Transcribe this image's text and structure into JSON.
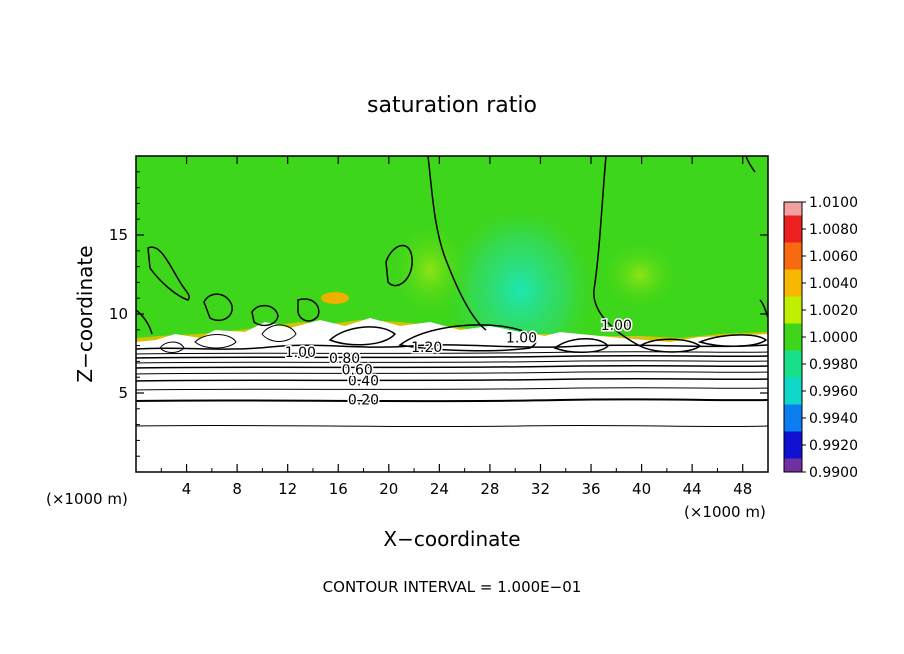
{
  "chart_data": {
    "type": "heatmap",
    "title": "saturation ratio",
    "xlabel": "X−coordinate",
    "ylabel": "Z−coordinate",
    "x_unit_left": "(×1000 m)",
    "x_unit_right": "(×1000 m)",
    "footer": "CONTOUR INTERVAL = 1.000E−01",
    "xlim": [
      0,
      50
    ],
    "ylim": [
      0,
      20
    ],
    "x_ticks": [
      4,
      8,
      12,
      16,
      20,
      24,
      28,
      32,
      36,
      40,
      44,
      48
    ],
    "y_ticks": [
      5,
      10,
      15
    ],
    "colorbar": {
      "levels": [
        "1.0100",
        "1.0080",
        "1.0060",
        "1.0040",
        "1.0020",
        "1.0000",
        "0.9980",
        "0.9960",
        "0.9940",
        "0.9920",
        "0.9900"
      ],
      "colors": [
        "#f3a0a0",
        "#ec2020",
        "#f86a10",
        "#f8b800",
        "#bff000",
        "#3ed61a",
        "#18e08a",
        "#10d8c8",
        "#0a7ef0",
        "#1010d0",
        "#7030a0"
      ]
    },
    "contour_labels": [
      {
        "text": "0.20",
        "x": 18.0,
        "z": 4.6
      },
      {
        "text": "0.40",
        "x": 18.0,
        "z": 5.8
      },
      {
        "text": "0.60",
        "x": 17.5,
        "z": 6.5
      },
      {
        "text": "0.80",
        "x": 16.5,
        "z": 7.2
      },
      {
        "text": "1.00",
        "x": 13.0,
        "z": 7.6
      },
      {
        "text": "1.20",
        "x": 23.0,
        "z": 7.9
      },
      {
        "text": "1.00",
        "x": 30.5,
        "z": 8.5
      },
      {
        "text": "1.00",
        "x": 38.0,
        "z": 9.3
      }
    ]
  }
}
